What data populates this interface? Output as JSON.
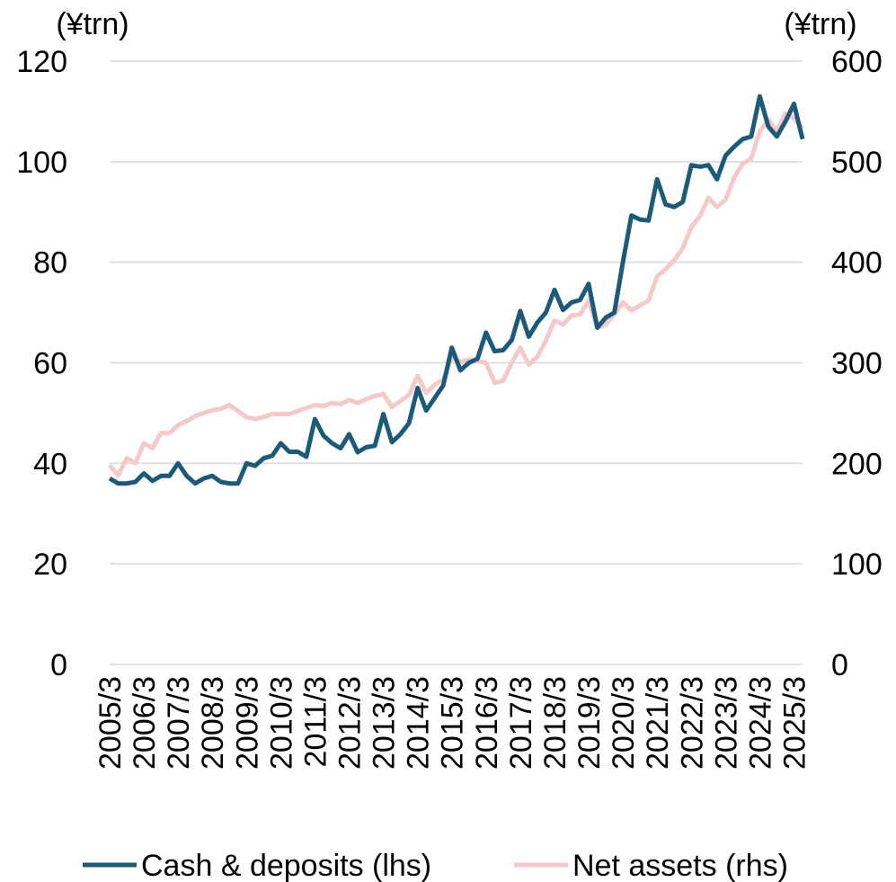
{
  "chart_data": {
    "type": "line",
    "y_unit_label": "(¥trn)",
    "y2_unit_label": "(¥trn)",
    "categories": [
      "2005/3",
      null,
      null,
      null,
      "2006/3",
      null,
      null,
      null,
      "2007/3",
      null,
      null,
      null,
      "2008/3",
      null,
      null,
      null,
      "2009/3",
      null,
      null,
      null,
      "2010/3",
      null,
      null,
      null,
      "2011/3",
      null,
      null,
      null,
      "2012/3",
      null,
      null,
      null,
      "2013/3",
      null,
      null,
      null,
      "2014/3",
      null,
      null,
      null,
      "2015/3",
      null,
      null,
      null,
      "2016/3",
      null,
      null,
      null,
      "2017/3",
      null,
      null,
      null,
      "2018/3",
      null,
      null,
      null,
      "2019/3",
      null,
      null,
      null,
      "2020/3",
      null,
      null,
      null,
      "2021/3",
      null,
      null,
      null,
      "2022/3",
      null,
      null,
      null,
      "2023/3",
      null,
      null,
      null,
      "2024/3",
      null,
      null,
      null,
      "2025/3",
      null
    ],
    "series": [
      {
        "name": "Cash & deposits (lhs)",
        "color": "#1b5b79",
        "axis": "y",
        "values": [
          37,
          36,
          36,
          36.3,
          38,
          36.5,
          37.5,
          37.5,
          40,
          37.5,
          36,
          37,
          37.5,
          36.3,
          36,
          36,
          40,
          39.5,
          41,
          41.5,
          44,
          42.3,
          42.3,
          41.3,
          48.8,
          45.5,
          44,
          43,
          45.8,
          42.2,
          43.2,
          43.5,
          49.8,
          44.2,
          45.8,
          48,
          55,
          50.5,
          53,
          55.5,
          63,
          58.5,
          60,
          60.8,
          66,
          62.3,
          62.5,
          64.5,
          70.3,
          65.2,
          68,
          70,
          74.5,
          70.5,
          72,
          72.5,
          75.7,
          67,
          69,
          70,
          80,
          89.3,
          88.5,
          88.3,
          96.5,
          91.5,
          91,
          92,
          99.3,
          99,
          99.3,
          96.5,
          101.2,
          103,
          104.5,
          105,
          113,
          107,
          105,
          108,
          111.5,
          104.5
        ]
      },
      {
        "name": "Net assets (rhs)",
        "color": "#f6c9c9",
        "axis": "y2",
        "values": [
          198,
          188,
          205,
          200,
          220,
          215,
          230,
          230,
          238,
          242,
          247,
          250,
          253,
          254,
          258,
          252,
          246,
          244,
          246,
          249,
          249,
          249,
          252,
          255,
          258,
          257,
          260,
          259,
          263,
          260,
          264,
          267,
          269,
          256,
          262,
          268,
          287,
          270,
          278,
          283,
          305,
          301,
          303,
          302,
          300,
          280,
          282,
          300,
          315,
          298,
          306,
          322,
          342,
          338,
          347,
          348,
          362,
          335,
          338,
          348,
          360,
          352,
          357,
          362,
          386,
          393,
          402,
          414,
          435,
          446,
          464,
          455,
          462,
          484,
          498,
          503,
          530,
          542,
          530,
          548,
          543,
          533
        ]
      }
    ],
    "ylim": [
      0,
      120
    ],
    "yticks": [
      0,
      20,
      40,
      60,
      80,
      100,
      120
    ],
    "y2lim": [
      0,
      600
    ],
    "y2ticks": [
      0,
      100,
      200,
      300,
      400,
      500,
      600
    ],
    "grid": true,
    "legend": "bottom"
  }
}
